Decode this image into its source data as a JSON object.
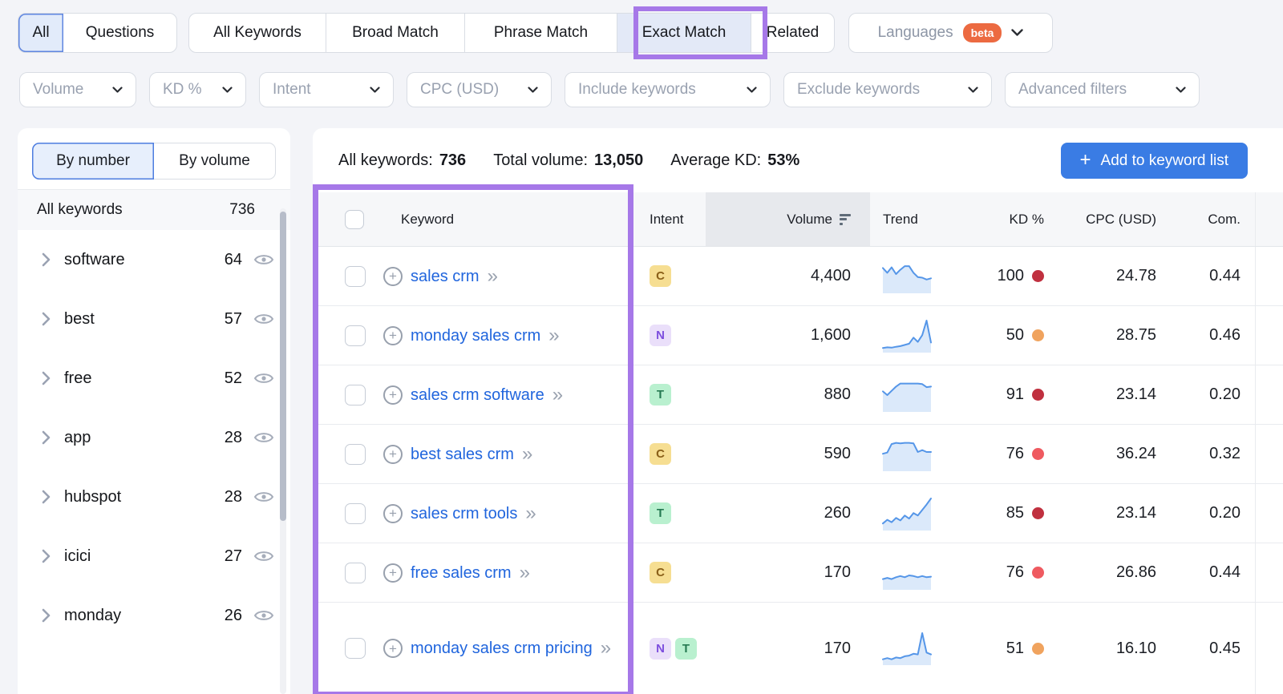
{
  "match_tabs": {
    "group1": [
      {
        "label": "All",
        "selected": true
      },
      {
        "label": "Questions",
        "selected": false
      }
    ],
    "group2": [
      {
        "label": "All Keywords",
        "selected": false
      },
      {
        "label": "Broad Match",
        "selected": false
      },
      {
        "label": "Phrase Match",
        "selected": false
      },
      {
        "label": "Exact Match",
        "selected": true,
        "highlighted": true
      },
      {
        "label": "Related",
        "selected": false
      }
    ],
    "languages": {
      "label": "Languages",
      "badge": "beta"
    }
  },
  "filters": [
    "Volume",
    "KD %",
    "Intent",
    "CPC (USD)",
    "Include keywords",
    "Exclude keywords",
    "Advanced filters"
  ],
  "sidebar": {
    "toggle": [
      {
        "label": "By number",
        "selected": true
      },
      {
        "label": "By volume",
        "selected": false
      }
    ],
    "header": {
      "label": "All keywords",
      "count": "736"
    },
    "groups": [
      {
        "label": "software",
        "count": "64"
      },
      {
        "label": "best",
        "count": "57"
      },
      {
        "label": "free",
        "count": "52"
      },
      {
        "label": "app",
        "count": "28"
      },
      {
        "label": "hubspot",
        "count": "28"
      },
      {
        "label": "icici",
        "count": "27"
      },
      {
        "label": "monday",
        "count": "26"
      }
    ]
  },
  "summary": {
    "all_keywords_label": "All keywords:",
    "all_keywords_value": "736",
    "total_volume_label": "Total volume:",
    "total_volume_value": "13,050",
    "average_kd_label": "Average KD:",
    "average_kd_value": "53%",
    "add_button": "Add to keyword list"
  },
  "table": {
    "columns": [
      "Keyword",
      "Intent",
      "Volume",
      "Trend",
      "KD %",
      "CPC (USD)",
      "Com."
    ],
    "rows": [
      {
        "keyword": "sales crm",
        "intents": [
          {
            "label": "C",
            "type": "commercial"
          }
        ],
        "volume": "4,400",
        "kd": "100",
        "kd_level": "very_hard",
        "cpc": "24.78",
        "com": "0.44",
        "trend": [
          0.78,
          0.62,
          0.8,
          0.58,
          0.72,
          0.84,
          0.84,
          0.62,
          0.48,
          0.46,
          0.4,
          0.44
        ]
      },
      {
        "keyword": "monday sales crm",
        "intents": [
          {
            "label": "N",
            "type": "navigational"
          }
        ],
        "volume": "1,600",
        "kd": "50",
        "kd_level": "possible",
        "cpc": "28.75",
        "com": "0.46",
        "trend": [
          0.1,
          0.12,
          0.11,
          0.14,
          0.16,
          0.2,
          0.24,
          0.44,
          0.3,
          0.52,
          1.0,
          0.28
        ]
      },
      {
        "keyword": "sales crm software",
        "intents": [
          {
            "label": "T",
            "type": "transactional"
          }
        ],
        "volume": "880",
        "kd": "91",
        "kd_level": "very_hard",
        "cpc": "23.14",
        "com": "0.20",
        "trend": [
          0.62,
          0.5,
          0.64,
          0.78,
          0.88,
          0.88,
          0.88,
          0.88,
          0.88,
          0.86,
          0.76,
          0.78
        ]
      },
      {
        "keyword": "best sales crm",
        "intents": [
          {
            "label": "C",
            "type": "commercial"
          }
        ],
        "volume": "590",
        "kd": "76",
        "kd_level": "hard",
        "cpc": "36.24",
        "com": "0.32",
        "trend": [
          0.52,
          0.56,
          0.84,
          0.88,
          0.86,
          0.88,
          0.88,
          0.86,
          0.58,
          0.64,
          0.58,
          0.58
        ]
      },
      {
        "keyword": "sales crm tools",
        "intents": [
          {
            "label": "T",
            "type": "transactional"
          }
        ],
        "volume": "260",
        "kd": "85",
        "kd_level": "very_hard",
        "cpc": "23.14",
        "com": "0.20",
        "trend": [
          0.18,
          0.3,
          0.22,
          0.36,
          0.28,
          0.44,
          0.34,
          0.52,
          0.44,
          0.62,
          0.8,
          1.0
        ]
      },
      {
        "keyword": "free sales crm",
        "intents": [
          {
            "label": "C",
            "type": "commercial"
          }
        ],
        "volume": "170",
        "kd": "76",
        "kd_level": "hard",
        "cpc": "26.86",
        "com": "0.44",
        "trend": [
          0.3,
          0.34,
          0.3,
          0.36,
          0.4,
          0.36,
          0.42,
          0.4,
          0.36,
          0.4,
          0.36,
          0.38
        ]
      },
      {
        "keyword": "monday sales crm pricing",
        "intents": [
          {
            "label": "N",
            "type": "navigational"
          },
          {
            "label": "T",
            "type": "transactional"
          }
        ],
        "volume": "170",
        "kd": "51",
        "kd_level": "possible",
        "cpc": "16.10",
        "com": "0.45",
        "trend": [
          0.14,
          0.18,
          0.14,
          0.2,
          0.18,
          0.24,
          0.26,
          0.32,
          0.3,
          1.0,
          0.36,
          0.3
        ]
      }
    ]
  },
  "colors": {
    "highlight_purple": "#a678e8",
    "link_blue": "#2065dd",
    "button_blue": "#3a7ce4",
    "beta_orange": "#ec6a41",
    "spark_line": "#5596e8",
    "spark_fill": "#dbe9fa",
    "kd_levels": {
      "very_hard": "#c0303f",
      "hard": "#ef5a60",
      "possible": "#f0a35e"
    },
    "intent": {
      "commercial": {
        "bg": "#f6de92",
        "fg": "#8a6019"
      },
      "navigational": {
        "bg": "#eadffa",
        "fg": "#7d4ede"
      },
      "transactional": {
        "bg": "#b9f0cf",
        "fg": "#267a52"
      }
    }
  }
}
